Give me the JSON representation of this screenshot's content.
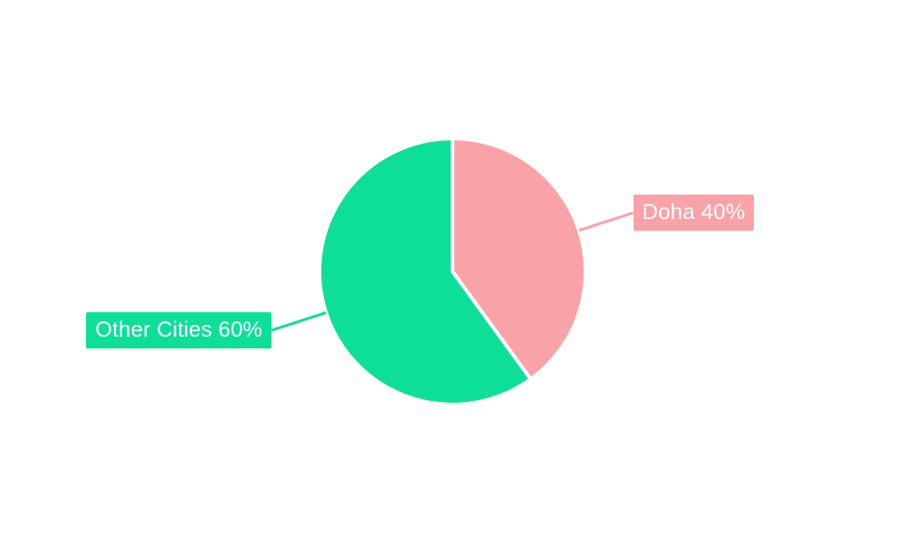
{
  "page": {
    "background_color": "#ffffff"
  },
  "chart_data": {
    "type": "pie",
    "title": "",
    "categories": [
      "Doha",
      "Other Cities"
    ],
    "values": [
      40,
      60
    ],
    "slices": [
      {
        "name": "Doha",
        "value": 40,
        "label": "Doha 40%",
        "color": "#F9A2A8"
      },
      {
        "name": "Other Cities",
        "value": 60,
        "label": "Other Cities 60%",
        "color": "#0EDF98"
      }
    ],
    "start_angle_deg": -90,
    "direction": "clockwise",
    "slice_border_color": "#ffffff",
    "label_text_color": "#ffffff",
    "label_style": "outside boxes with radial leader lines",
    "legend": "none"
  }
}
